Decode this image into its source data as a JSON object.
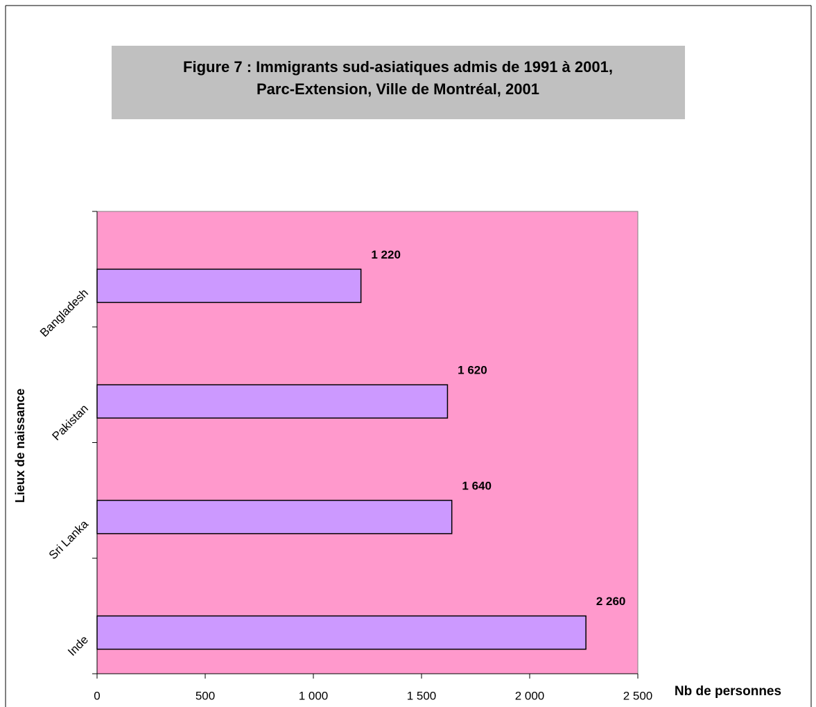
{
  "chart_data": {
    "type": "bar",
    "orientation": "horizontal",
    "title": [
      "Figure 7 : Immigrants sud-asiatiques admis de 1991 à 2001,",
      "Parc-Extension, Ville de Montréal, 2001"
    ],
    "x_label": "Nb de personnes",
    "y_label": "Lieux de naissance",
    "categories": [
      "Bangladesh",
      "Pakistan",
      "Sri Lanka",
      "Inde"
    ],
    "values": [
      1220,
      1620,
      1640,
      2260
    ],
    "value_labels": [
      "1 220",
      "1 620",
      "1 640",
      "2 260"
    ],
    "color": "#cc99ff",
    "background": "#ff99cc",
    "xlim": [
      0,
      2500
    ],
    "xticks": [
      0,
      500,
      {
        "value": 1000,
        "label": "1 000"
      },
      {
        "value": 1500,
        "label": "1 500"
      },
      {
        "value": 2000,
        "label": "2 000"
      },
      {
        "value": 2500,
        "label": "2 500"
      }
    ],
    "grid": false
  }
}
